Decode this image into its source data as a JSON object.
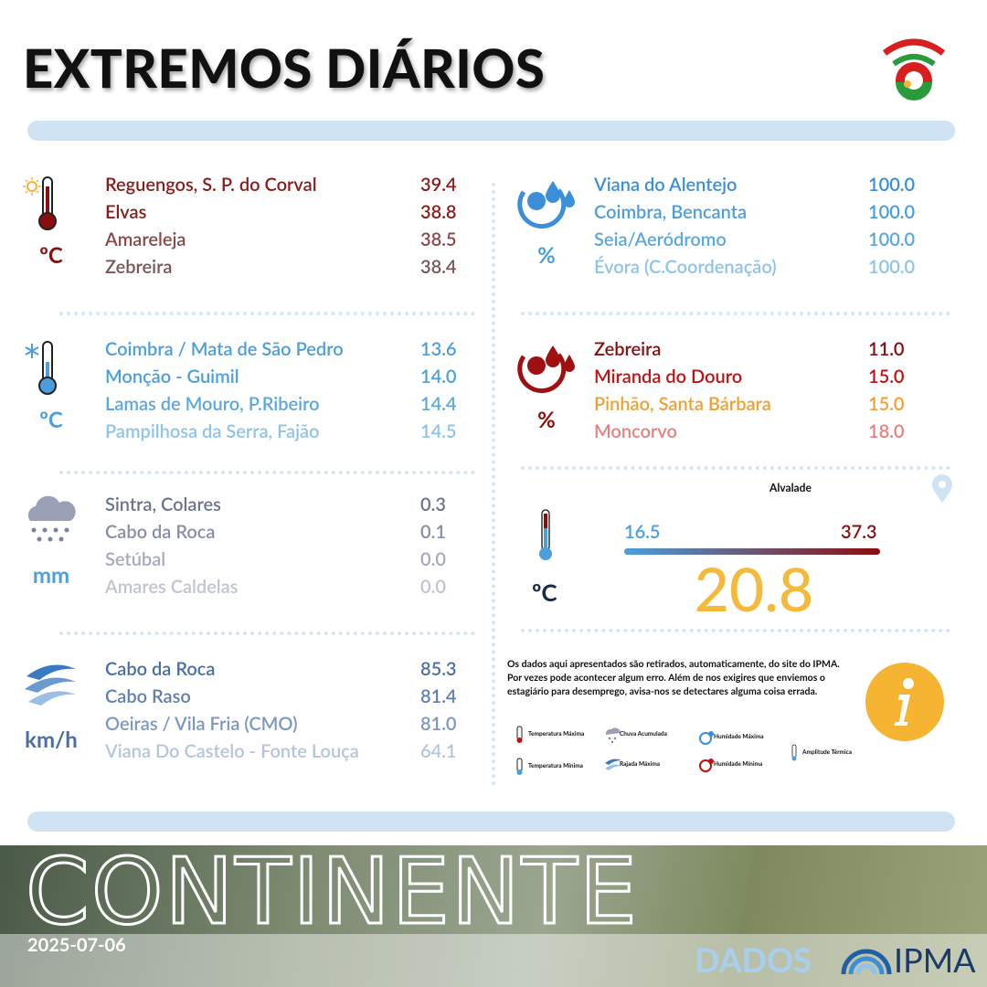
{
  "header": {
    "title": "EXTREMOS DIÁRIOS"
  },
  "sections": [
    {
      "unit": "ºC",
      "unit_color": "#8b0d0d",
      "rows": [
        {
          "place": "Reguengos, S. P. do Corval",
          "value": "39.4",
          "color": "#8b1a1a"
        },
        {
          "place": "Elvas",
          "value": "38.8",
          "color": "#8b1a1a"
        },
        {
          "place": "Amareleja",
          "value": "38.5",
          "color": "#8a4848"
        },
        {
          "place": "Zebreira",
          "value": "38.4",
          "color": "#7a5555"
        }
      ]
    },
    {
      "unit": "ºC",
      "unit_color": "#4a9fdc",
      "rows": [
        {
          "place": "Coimbra / Mata de São Pedro",
          "value": "13.6",
          "color": "#4a9fdc"
        },
        {
          "place": "Monção - Guimil",
          "value": "14.0",
          "color": "#4a9fdc"
        },
        {
          "place": "Lamas de Mouro, P.Ribeiro",
          "value": "14.4",
          "color": "#5aa8df"
        },
        {
          "place": "Pampilhosa da Serra, Fajão",
          "value": "14.5",
          "color": "#8ec3ea"
        }
      ]
    },
    {
      "unit": "mm",
      "unit_color": "#4a9fdc",
      "rows": [
        {
          "place": "Sintra, Colares",
          "value": "0.3",
          "color": "#6b7390"
        },
        {
          "place": "Cabo da Roca",
          "value": "0.1",
          "color": "#888ea8"
        },
        {
          "place": "Setúbal",
          "value": "0.0",
          "color": "#a5aabd"
        },
        {
          "place": "Amares Caldelas",
          "value": "0.0",
          "color": "#c0c4d2"
        }
      ]
    },
    {
      "unit": "km/h",
      "unit_color": "#4a6fa5",
      "rows": [
        {
          "place": "Cabo da Roca",
          "value": "85.3",
          "color": "#4a6fa5"
        },
        {
          "place": "Cabo Raso",
          "value": "81.4",
          "color": "#6080b0"
        },
        {
          "place": "Oeiras / Vila Fria (CMO)",
          "value": "81.0",
          "color": "#7d97c0"
        },
        {
          "place": "Viana Do Castelo - Fonte Louça",
          "value": "64.1",
          "color": "#b5c5dc"
        }
      ]
    },
    {
      "unit": "%",
      "unit_color": "#4a9fdc",
      "rows": [
        {
          "place": "Viana do Alentejo",
          "value": "100.0",
          "color": "#3a8fd8"
        },
        {
          "place": "Coimbra, Bencanta",
          "value": "100.0",
          "color": "#4a9fdc"
        },
        {
          "place": "Seia/Aeródromo",
          "value": "100.0",
          "color": "#5aa8df"
        },
        {
          "place": "Évora (C.Coordenação)",
          "value": "100.0",
          "color": "#8ec3ea"
        }
      ]
    },
    {
      "unit": "%",
      "unit_color": "#8b0d0d",
      "rows": [
        {
          "place": "Zebreira",
          "value": "11.0",
          "color": "#8b0d0d"
        },
        {
          "place": "Miranda do Douro",
          "value": "15.0",
          "color": "#c41010"
        },
        {
          "place": "Pinhão, Santa Bárbara",
          "value": "15.0",
          "color": "#f0a030"
        },
        {
          "place": "Moncorvo",
          "value": "18.0",
          "color": "#e88080"
        }
      ]
    }
  ],
  "amplitude": {
    "location": "Alvalade",
    "min": "16.5",
    "max": "37.3",
    "value": "20.8",
    "unit": "ºC"
  },
  "info": {
    "text": "Os dados aqui apresentados são retirados, automaticamente,  do site do IPMA. Por vezes pode acontecer algum erro. Além de nos exigires que enviemos o estagiário para desemprego, avisa-nos se detectares alguma coisa errada.",
    "legend": [
      "Temperatura Máxima",
      "Temperatura Mínima",
      "Chuva Acumulada",
      "Rajada Máxima",
      "Humidade Máxima",
      "Humidade Mínima",
      "Amplitude Térmica"
    ]
  },
  "footer": {
    "region": "CONTINENTE",
    "date": "2025-07-06",
    "source_label": "DADOS",
    "source": "IPMA"
  }
}
